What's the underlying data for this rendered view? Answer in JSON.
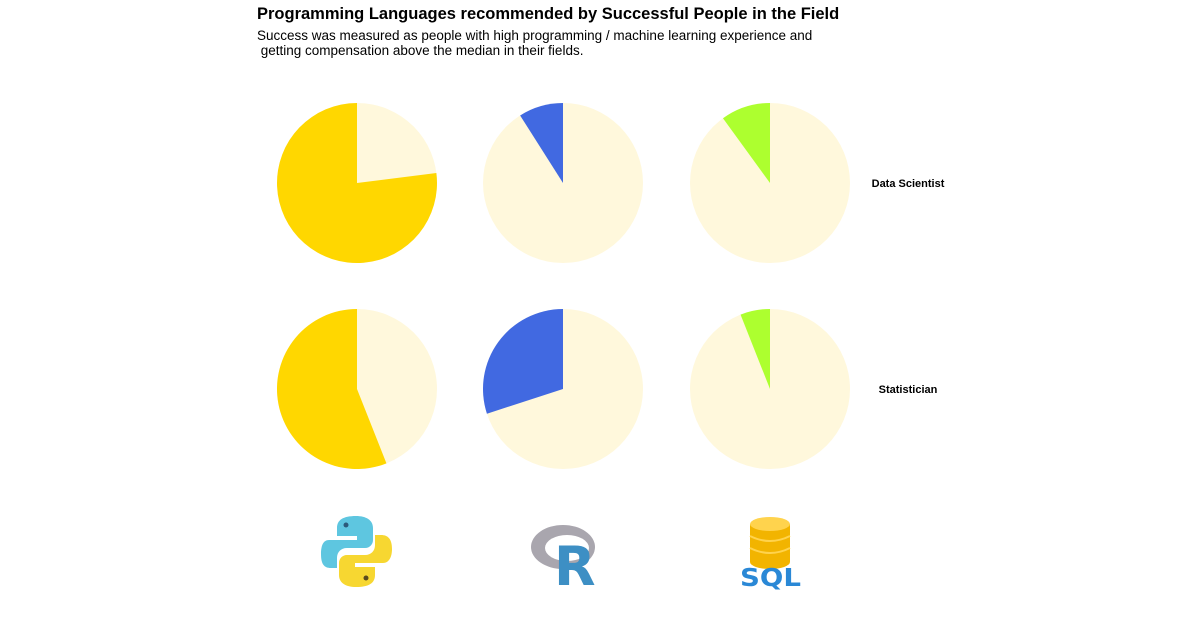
{
  "title": "Programming Languages recommended by Successful People in the Field",
  "subtitle": "Success was measured as people with high programming / machine learning experience and\n getting compensation above the median in their fields.",
  "colors": {
    "background_slice": "#FFF8DC",
    "python": "#FFD700",
    "r": "#4169E1",
    "sql": "#ADFF2F"
  },
  "icons": [
    "python-logo",
    "r-logo",
    "sql-database-logo"
  ],
  "logo_text": {
    "r": "R",
    "sql": "SQL"
  },
  "chart_data": {
    "type": "pie",
    "facet_columns": [
      "Python",
      "R",
      "SQL"
    ],
    "facet_rows": [
      "Data Scientist",
      "Statistician"
    ],
    "row_labels": [
      "Data Scientist",
      "Statistician"
    ],
    "values": {
      "Data Scientist": {
        "Python": 0.77,
        "R": 0.09,
        "SQL": 0.1
      },
      "Statistician": {
        "Python": 0.56,
        "R": 0.3,
        "SQL": 0.06
      }
    },
    "start_angle": "12 o'clock",
    "direction": "counterclockwise",
    "legend": "none"
  }
}
